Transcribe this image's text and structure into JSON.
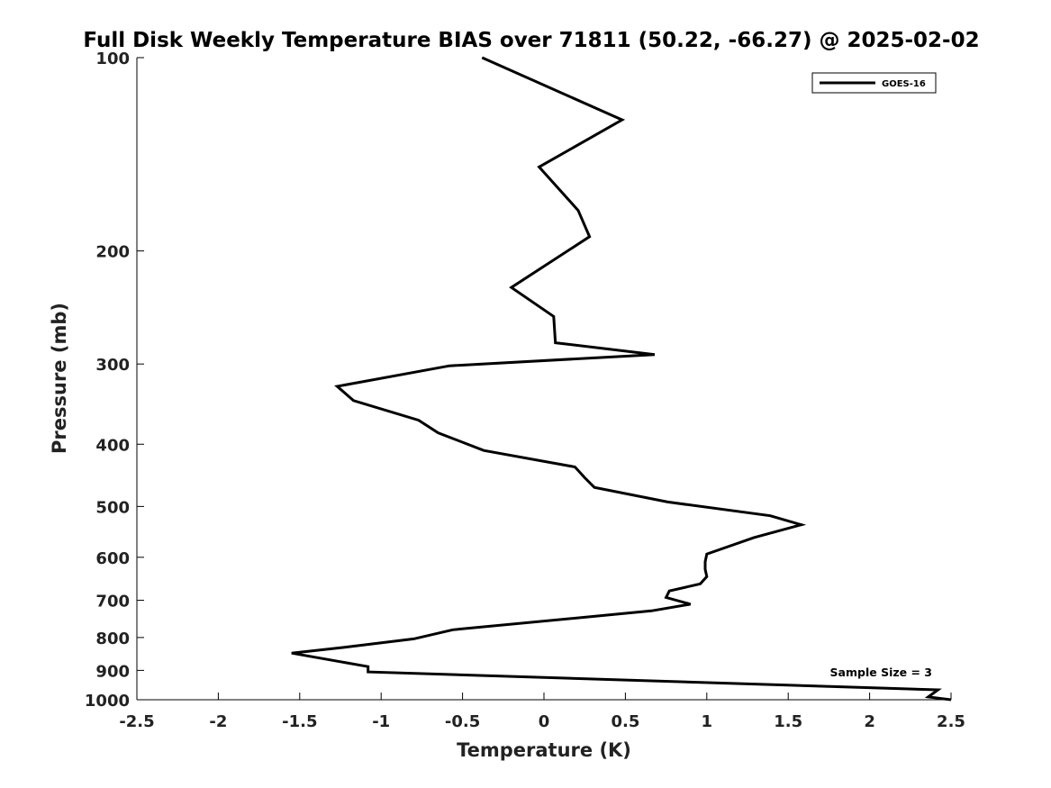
{
  "chart_data": {
    "type": "line",
    "title": "Full Disk Weekly Temperature BIAS over 71811 (50.22, -66.27) @ 2025-02-02",
    "xlabel": "Temperature (K)",
    "ylabel": "Pressure (mb)",
    "xlim": [
      -2.5,
      2.5
    ],
    "ylim": [
      100,
      1000
    ],
    "y_scale": "log",
    "y_reversed": true,
    "grid": false,
    "legend_position": "top-right",
    "x_ticks": [
      -2.5,
      -2,
      -1.5,
      -1,
      -0.5,
      0,
      0.5,
      1,
      1.5,
      2,
      2.5
    ],
    "x_tick_labels": [
      "-2.5",
      "-2",
      "-1.5",
      "-1",
      "-0.5",
      "0",
      "0.5",
      "1",
      "1.5",
      "2",
      "2.5"
    ],
    "y_ticks": [
      100,
      200,
      300,
      400,
      500,
      600,
      700,
      800,
      900,
      1000
    ],
    "y_tick_labels": [
      "100",
      "200",
      "300",
      "400",
      "500",
      "600",
      "700",
      "800",
      "900",
      "1000"
    ],
    "annotation": "Sample Size = 3",
    "series": [
      {
        "name": "GOES-16",
        "color": "#000000",
        "x": [
          -0.38,
          0.48,
          -0.03,
          0.21,
          0.28,
          -0.2,
          0.06,
          0.07,
          0.68,
          -0.58,
          -1.27,
          -1.17,
          -0.77,
          -0.65,
          -0.37,
          0.19,
          0.25,
          0.31,
          0.76,
          1.39,
          1.58,
          1.29,
          1.0,
          0.99,
          0.99,
          1.0,
          0.96,
          0.77,
          0.75,
          0.9,
          0.66,
          -0.56,
          -0.8,
          -1.23,
          -1.55,
          -1.08,
          -1.08,
          2.42,
          2.36,
          2.5
        ],
        "y": [
          100,
          125,
          148,
          173,
          190,
          228,
          253,
          278,
          290,
          302,
          325,
          342,
          367,
          384,
          409,
          434,
          451,
          467,
          492,
          517,
          534,
          559,
          593,
          610,
          626,
          643,
          660,
          677,
          693,
          710,
          727,
          778,
          804,
          829,
          846,
          888,
          905,
          965,
          990,
          1000
        ]
      }
    ]
  }
}
